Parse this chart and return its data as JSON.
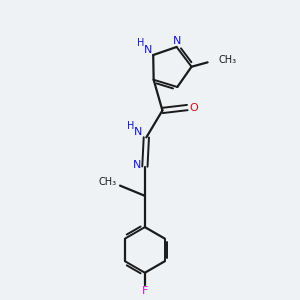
{
  "background_color": "#eef2f5",
  "bond_color": "#1a1a1a",
  "nitrogen_color": "#1414cc",
  "oxygen_color": "#cc1414",
  "fluorine_color": "#cc14cc",
  "fig_width": 3.0,
  "fig_height": 3.0,
  "dpi": 100,
  "xlim": [
    0,
    10
  ],
  "ylim": [
    0,
    10
  ]
}
